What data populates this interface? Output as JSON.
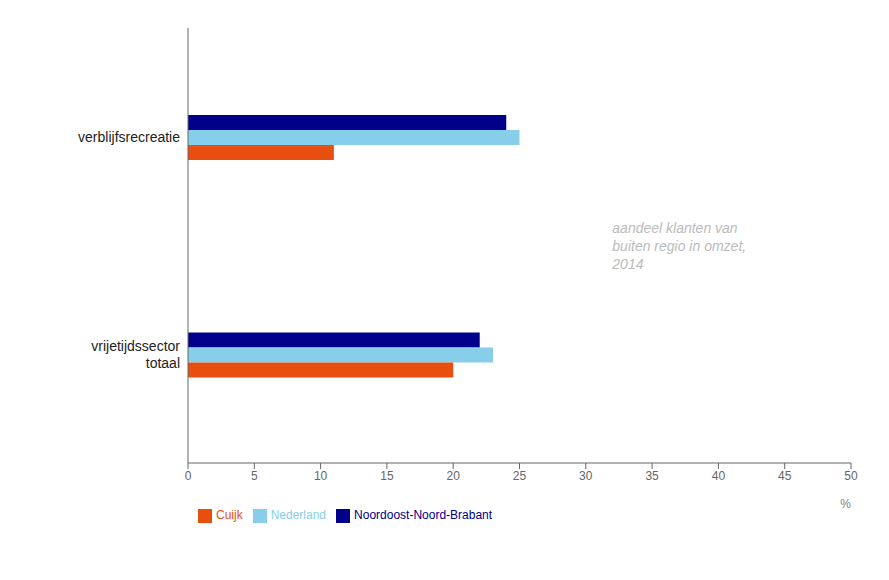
{
  "chart_data": {
    "type": "bar",
    "orientation": "horizontal",
    "categories": [
      "verblijfsrecreatie",
      "vrijetijdssector\ntotaal"
    ],
    "series": [
      {
        "name": "Noordoost-Noord-Brabant",
        "color": "#00008B",
        "values": [
          24,
          22
        ]
      },
      {
        "name": "Nederland",
        "color": "#87CEEB",
        "values": [
          25,
          23
        ]
      },
      {
        "name": "Cuijk",
        "color": "#E84E0F",
        "values": [
          11,
          20
        ]
      }
    ],
    "xlim": [
      0,
      50
    ],
    "xticks": [
      0,
      5,
      10,
      15,
      20,
      25,
      30,
      35,
      40,
      45,
      50
    ],
    "xlabel": "%",
    "annotation": "aandeel klanten van\nbuiten regio in omzet,\n2014",
    "grid": false,
    "legend": "bottom"
  }
}
